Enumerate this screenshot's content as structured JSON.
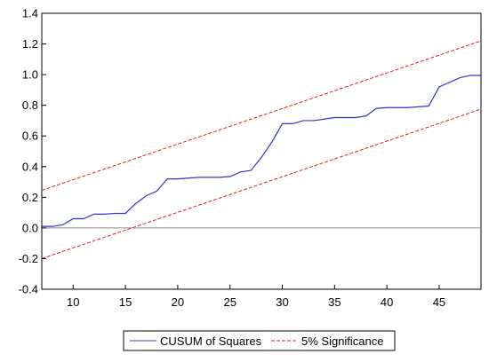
{
  "chart_data": {
    "type": "line",
    "title": "",
    "xlabel": "",
    "ylabel": "",
    "xlim": [
      7,
      49
    ],
    "ylim": [
      -0.4,
      1.4
    ],
    "x_ticks": [
      10,
      15,
      20,
      25,
      30,
      35,
      40,
      45
    ],
    "y_ticks": [
      -0.4,
      -0.2,
      0.0,
      0.2,
      0.4,
      0.6,
      0.8,
      1.0,
      1.2,
      1.4
    ],
    "y_tick_labels": [
      "-0.4",
      "-0.2",
      "0.0",
      "0.2",
      "0.4",
      "0.6",
      "0.8",
      "1.0",
      "1.2",
      "1.4"
    ],
    "zero_line": true,
    "grid": false,
    "legend_position": "bottom",
    "series": [
      {
        "name": "CUSUM of Squares",
        "color": "#3333cc",
        "style": "solid",
        "x": [
          7,
          8,
          9,
          10,
          11,
          12,
          13,
          14,
          15,
          16,
          17,
          18,
          19,
          20,
          21,
          22,
          23,
          24,
          25,
          26,
          27,
          28,
          29,
          30,
          31,
          32,
          33,
          34,
          35,
          36,
          37,
          38,
          39,
          40,
          41,
          42,
          43,
          44,
          45,
          46,
          47,
          48,
          49
        ],
        "y": [
          0.01,
          0.01,
          0.02,
          0.06,
          0.06,
          0.09,
          0.09,
          0.095,
          0.095,
          0.16,
          0.21,
          0.24,
          0.32,
          0.32,
          0.325,
          0.33,
          0.33,
          0.33,
          0.335,
          0.365,
          0.375,
          0.46,
          0.56,
          0.68,
          0.68,
          0.7,
          0.7,
          0.71,
          0.72,
          0.72,
          0.72,
          0.73,
          0.78,
          0.785,
          0.785,
          0.785,
          0.79,
          0.795,
          0.92,
          0.95,
          0.98,
          0.995,
          0.995
        ]
      },
      {
        "name": "5% Significance",
        "color": "#dd2222",
        "style": "dashed",
        "bands": [
          {
            "x": [
              7,
              49
            ],
            "y": [
              0.245,
              1.22
            ]
          },
          {
            "x": [
              7,
              49
            ],
            "y": [
              -0.2,
              0.775
            ]
          }
        ]
      }
    ]
  },
  "legend": {
    "items": [
      {
        "label": "CUSUM of Squares",
        "color": "#3333cc",
        "style": "solid"
      },
      {
        "label": "5% Significance",
        "color": "#dd2222",
        "style": "dashed"
      }
    ]
  }
}
